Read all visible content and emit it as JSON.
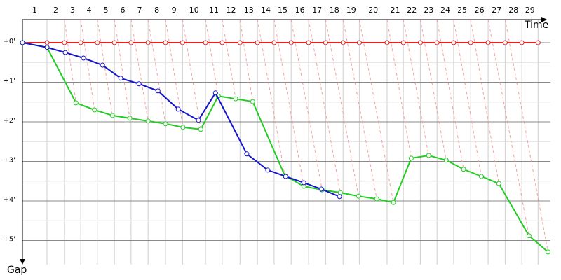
{
  "chart_data": {
    "type": "line",
    "x_label": "Time",
    "y_label": "Gap",
    "lap_labels": [
      1,
      2,
      3,
      4,
      5,
      6,
      7,
      8,
      9,
      10,
      11,
      12,
      13,
      14,
      15,
      16,
      17,
      18,
      19,
      20,
      21,
      22,
      23,
      24,
      25,
      26,
      27,
      28,
      29
    ],
    "xlim": [
      0,
      13.5
    ],
    "ylim": [
      -0.76,
      5.54
    ],
    "yticks": [
      {
        "value": 0,
        "label": "+0'"
      },
      {
        "value": 1,
        "label": "+1'"
      },
      {
        "value": 2,
        "label": "+2'"
      },
      {
        "value": 3,
        "label": "+3'"
      },
      {
        "value": 4,
        "label": "+4'"
      },
      {
        "value": 5,
        "label": "+5'"
      }
    ],
    "grid": true,
    "series": [
      {
        "color": "#e82020",
        "x": [
          0,
          0.62,
          1.06,
          1.47,
          1.89,
          2.32,
          2.74,
          3.17,
          3.61,
          4.04,
          4.62,
          5.04,
          5.49,
          5.93,
          6.35,
          6.78,
          7.22,
          7.65,
          8.09,
          8.5,
          9.2,
          9.61,
          10.04,
          10.46,
          10.88,
          11.31,
          11.75,
          12.18,
          12.6,
          13.01
        ],
        "values": [
          0,
          0,
          0,
          0,
          0,
          0,
          0,
          0,
          0,
          0,
          0,
          0,
          0,
          0,
          0,
          0,
          0,
          0,
          0,
          0,
          0,
          0,
          0,
          0,
          0,
          0,
          0,
          0,
          0,
          0
        ]
      },
      {
        "color": "#22cc22",
        "x": [
          0,
          0.62,
          1.35,
          1.82,
          2.27,
          2.71,
          3.17,
          3.61,
          4.05,
          4.5,
          4.94,
          5.38,
          5.81,
          6.62,
          7.1,
          7.56,
          8.02,
          8.48,
          8.94,
          9.36,
          9.81,
          10.25,
          10.69,
          11.13,
          11.58,
          12.02,
          12.78,
          13.26
        ],
        "values": [
          0,
          0.12,
          1.52,
          1.7,
          1.84,
          1.91,
          1.98,
          2.05,
          2.14,
          2.19,
          1.35,
          1.42,
          1.49,
          3.36,
          3.63,
          3.72,
          3.79,
          3.88,
          3.95,
          4.04,
          2.92,
          2.85,
          2.97,
          3.2,
          3.38,
          3.56,
          4.88,
          5.29
        ]
      },
      {
        "color": "#1414cc",
        "x": [
          0,
          0.62,
          1.08,
          1.54,
          2.02,
          2.48,
          2.94,
          3.42,
          3.93,
          4.44,
          4.87,
          5.66,
          6.19,
          6.64,
          7.1,
          7.54,
          8.0
        ],
        "values": [
          0,
          0.12,
          0.25,
          0.39,
          0.57,
          0.9,
          1.04,
          1.22,
          1.68,
          1.96,
          1.27,
          2.81,
          3.22,
          3.38,
          3.54,
          3.7,
          3.89
        ]
      }
    ]
  }
}
